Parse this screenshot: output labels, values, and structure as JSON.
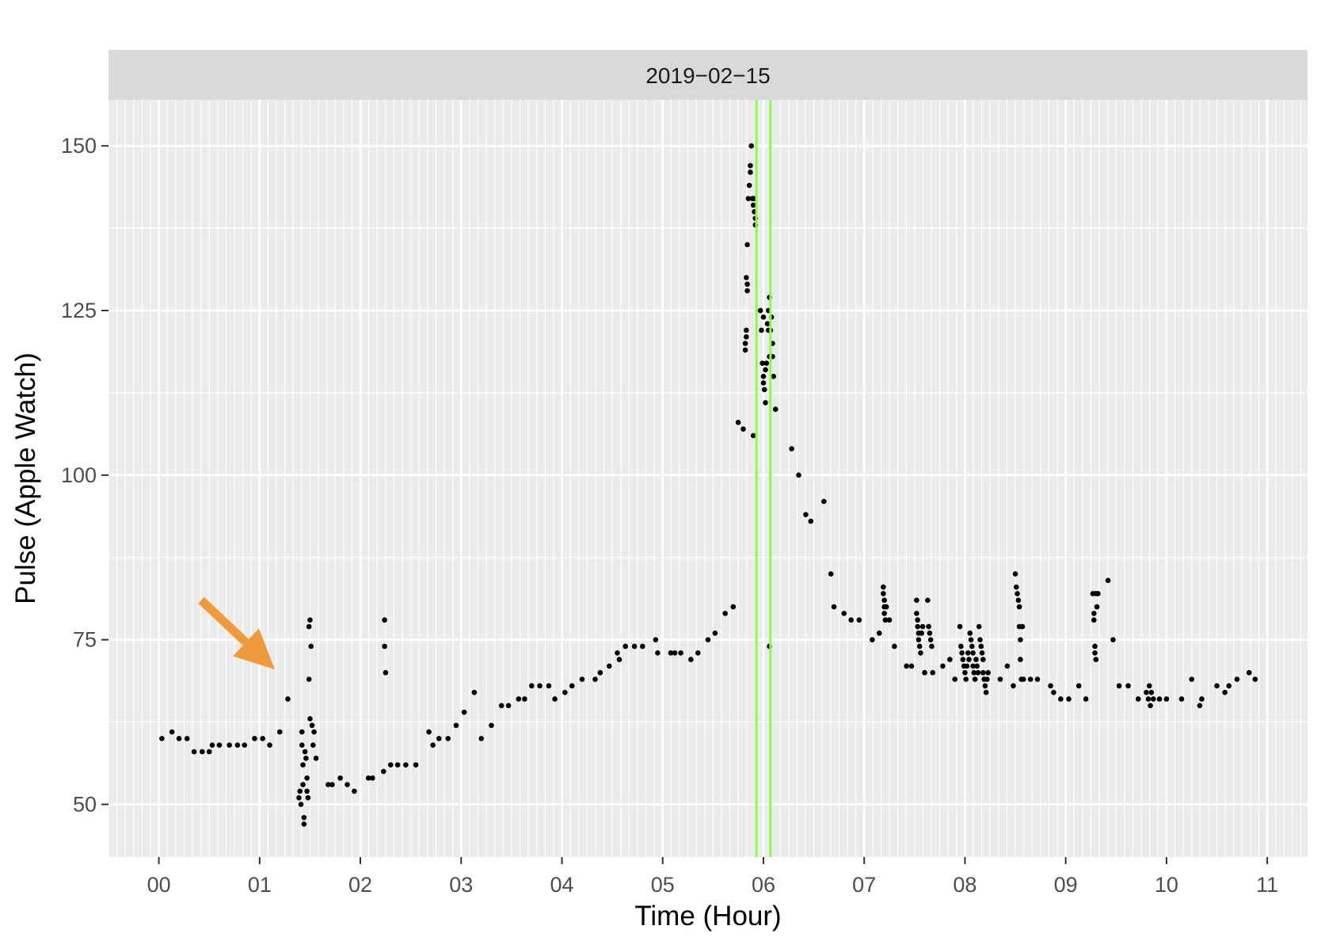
{
  "chart_data": {
    "type": "scatter",
    "facet_label": "2019−02−15",
    "xlabel": "Time (Hour)",
    "ylabel": "Pulse (Apple Watch)",
    "xlim": [
      -0.5,
      11.4
    ],
    "ylim": [
      42,
      157
    ],
    "x_ticks": [
      {
        "value": 0,
        "label": "00"
      },
      {
        "value": 1,
        "label": "01"
      },
      {
        "value": 2,
        "label": "02"
      },
      {
        "value": 3,
        "label": "03"
      },
      {
        "value": 4,
        "label": "04"
      },
      {
        "value": 5,
        "label": "05"
      },
      {
        "value": 6,
        "label": "06"
      },
      {
        "value": 7,
        "label": "07"
      },
      {
        "value": 8,
        "label": "08"
      },
      {
        "value": 9,
        "label": "09"
      },
      {
        "value": 10,
        "label": "10"
      },
      {
        "value": 11,
        "label": "11"
      }
    ],
    "y_ticks": [
      {
        "value": 50,
        "label": "50"
      },
      {
        "value": 75,
        "label": "75"
      },
      {
        "value": 100,
        "label": "100"
      },
      {
        "value": 125,
        "label": "125"
      },
      {
        "value": 150,
        "label": "150"
      }
    ],
    "grid": true,
    "minor_grid_x": "every 5 minutes",
    "background_color": "#ebebeb",
    "strip_color": "#d9d9d9",
    "point_color": "#000000",
    "vertical_lines": {
      "color": "#80ff40",
      "x": [
        5.93,
        6.07
      ]
    },
    "annotation_arrow": {
      "color": "#f09a3c",
      "from": [
        0.42,
        81
      ],
      "to": [
        1.15,
        70.5
      ]
    },
    "points": [
      [
        0.03,
        60
      ],
      [
        0.13,
        61
      ],
      [
        0.2,
        60
      ],
      [
        0.28,
        60
      ],
      [
        0.35,
        58
      ],
      [
        0.43,
        58
      ],
      [
        0.5,
        58
      ],
      [
        0.53,
        59
      ],
      [
        0.6,
        59
      ],
      [
        0.7,
        59
      ],
      [
        0.78,
        59
      ],
      [
        0.85,
        59
      ],
      [
        0.95,
        60
      ],
      [
        1.03,
        60
      ],
      [
        1.1,
        59
      ],
      [
        1.2,
        61
      ],
      [
        1.28,
        66
      ],
      [
        1.39,
        51
      ],
      [
        1.4,
        52
      ],
      [
        1.41,
        50
      ],
      [
        1.42,
        61
      ],
      [
        1.42,
        59
      ],
      [
        1.43,
        56
      ],
      [
        1.43,
        53
      ],
      [
        1.44,
        47
      ],
      [
        1.44,
        48
      ],
      [
        1.45,
        58
      ],
      [
        1.46,
        57
      ],
      [
        1.47,
        54
      ],
      [
        1.47,
        52
      ],
      [
        1.48,
        51
      ],
      [
        1.49,
        69
      ],
      [
        1.49,
        77
      ],
      [
        1.5,
        78
      ],
      [
        1.51,
        74
      ],
      [
        1.5,
        63
      ],
      [
        1.52,
        62
      ],
      [
        1.53,
        59
      ],
      [
        1.54,
        61
      ],
      [
        1.56,
        57
      ],
      [
        1.68,
        53
      ],
      [
        1.72,
        53
      ],
      [
        1.8,
        54
      ],
      [
        1.87,
        53
      ],
      [
        1.94,
        52
      ],
      [
        2.08,
        54
      ],
      [
        2.12,
        54
      ],
      [
        2.23,
        55
      ],
      [
        2.24,
        78
      ],
      [
        2.24,
        74
      ],
      [
        2.25,
        70
      ],
      [
        2.3,
        56
      ],
      [
        2.37,
        56
      ],
      [
        2.45,
        56
      ],
      [
        2.55,
        56
      ],
      [
        2.68,
        61
      ],
      [
        2.72,
        59
      ],
      [
        2.78,
        60
      ],
      [
        2.87,
        60
      ],
      [
        2.95,
        62
      ],
      [
        3.03,
        64
      ],
      [
        3.13,
        67
      ],
      [
        3.2,
        60
      ],
      [
        3.3,
        62
      ],
      [
        3.4,
        65
      ],
      [
        3.47,
        65
      ],
      [
        3.57,
        66
      ],
      [
        3.63,
        66
      ],
      [
        3.7,
        68
      ],
      [
        3.78,
        68
      ],
      [
        3.87,
        68
      ],
      [
        3.93,
        66
      ],
      [
        4.03,
        67
      ],
      [
        4.1,
        68
      ],
      [
        4.2,
        69
      ],
      [
        4.33,
        69
      ],
      [
        4.38,
        70
      ],
      [
        4.47,
        71
      ],
      [
        4.55,
        73
      ],
      [
        4.57,
        72
      ],
      [
        4.63,
        74
      ],
      [
        4.72,
        74
      ],
      [
        4.8,
        74
      ],
      [
        4.93,
        75
      ],
      [
        4.95,
        73
      ],
      [
        5.08,
        73
      ],
      [
        5.12,
        73
      ],
      [
        5.18,
        73
      ],
      [
        5.28,
        72
      ],
      [
        5.35,
        73
      ],
      [
        5.45,
        75
      ],
      [
        5.52,
        76
      ],
      [
        5.62,
        79
      ],
      [
        5.7,
        80
      ],
      [
        5.75,
        108
      ],
      [
        5.8,
        107
      ],
      [
        5.9,
        106
      ],
      [
        5.82,
        120
      ],
      [
        5.82,
        119
      ],
      [
        5.83,
        122
      ],
      [
        5.83,
        121
      ],
      [
        5.83,
        130
      ],
      [
        5.84,
        129
      ],
      [
        5.84,
        128
      ],
      [
        5.84,
        135
      ],
      [
        5.85,
        142
      ],
      [
        5.86,
        144
      ],
      [
        5.87,
        146
      ],
      [
        5.87,
        147
      ],
      [
        5.88,
        150
      ],
      [
        5.89,
        142
      ],
      [
        5.9,
        141
      ],
      [
        5.91,
        142
      ],
      [
        5.91,
        140
      ],
      [
        5.92,
        139
      ],
      [
        5.92,
        138
      ],
      [
        5.97,
        125
      ],
      [
        5.98,
        122
      ],
      [
        5.99,
        117
      ],
      [
        6.0,
        115
      ],
      [
        6.0,
        114
      ],
      [
        6.01,
        113
      ],
      [
        6.02,
        111
      ],
      [
        6.0,
        124
      ],
      [
        6.02,
        116
      ],
      [
        6.03,
        117
      ],
      [
        6.04,
        123
      ],
      [
        6.05,
        125
      ],
      [
        6.05,
        122
      ],
      [
        6.06,
        118
      ],
      [
        6.06,
        127
      ],
      [
        6.07,
        122
      ],
      [
        6.08,
        124
      ],
      [
        6.09,
        120
      ],
      [
        6.09,
        118
      ],
      [
        6.1,
        115
      ],
      [
        6.12,
        110
      ],
      [
        6.06,
        74
      ],
      [
        6.28,
        104
      ],
      [
        6.35,
        100
      ],
      [
        6.42,
        94
      ],
      [
        6.47,
        93
      ],
      [
        6.6,
        96
      ],
      [
        6.67,
        85
      ],
      [
        6.7,
        80
      ],
      [
        6.8,
        79
      ],
      [
        6.87,
        78
      ],
      [
        6.95,
        78
      ],
      [
        7.08,
        75
      ],
      [
        7.15,
        76
      ],
      [
        7.19,
        83
      ],
      [
        7.19,
        82
      ],
      [
        7.2,
        81
      ],
      [
        7.2,
        80
      ],
      [
        7.2,
        79
      ],
      [
        7.21,
        78
      ],
      [
        7.22,
        80
      ],
      [
        7.25,
        78
      ],
      [
        7.3,
        74
      ],
      [
        7.42,
        71
      ],
      [
        7.47,
        71
      ],
      [
        7.52,
        81
      ],
      [
        7.52,
        79
      ],
      [
        7.53,
        78
      ],
      [
        7.53,
        77
      ],
      [
        7.54,
        76
      ],
      [
        7.54,
        75
      ],
      [
        7.55,
        74
      ],
      [
        7.56,
        73
      ],
      [
        7.57,
        76
      ],
      [
        7.58,
        77
      ],
      [
        7.6,
        70
      ],
      [
        7.63,
        81
      ],
      [
        7.64,
        77
      ],
      [
        7.65,
        76
      ],
      [
        7.66,
        75
      ],
      [
        7.67,
        74
      ],
      [
        7.68,
        70
      ],
      [
        7.78,
        71
      ],
      [
        7.85,
        72
      ],
      [
        7.9,
        69
      ],
      [
        7.95,
        77
      ],
      [
        7.96,
        74
      ],
      [
        7.97,
        73
      ],
      [
        7.98,
        72
      ],
      [
        7.99,
        71
      ],
      [
        8.0,
        70
      ],
      [
        8.01,
        69
      ],
      [
        8.02,
        71
      ],
      [
        8.03,
        73
      ],
      [
        8.04,
        72
      ],
      [
        8.05,
        76
      ],
      [
        8.06,
        75
      ],
      [
        8.07,
        74
      ],
      [
        8.08,
        73
      ],
      [
        8.08,
        71
      ],
      [
        8.09,
        70
      ],
      [
        8.1,
        69
      ],
      [
        8.11,
        72
      ],
      [
        8.12,
        71
      ],
      [
        8.13,
        70
      ],
      [
        8.14,
        77
      ],
      [
        8.15,
        75
      ],
      [
        8.16,
        74
      ],
      [
        8.17,
        73
      ],
      [
        8.18,
        72
      ],
      [
        8.18,
        70
      ],
      [
        8.19,
        69
      ],
      [
        8.2,
        68
      ],
      [
        8.21,
        67
      ],
      [
        8.22,
        69
      ],
      [
        8.23,
        70
      ],
      [
        8.35,
        69
      ],
      [
        8.42,
        71
      ],
      [
        8.48,
        68
      ],
      [
        8.5,
        85
      ],
      [
        8.51,
        83
      ],
      [
        8.52,
        82
      ],
      [
        8.53,
        81
      ],
      [
        8.54,
        80
      ],
      [
        8.54,
        77
      ],
      [
        8.55,
        75
      ],
      [
        8.55,
        72
      ],
      [
        8.56,
        69
      ],
      [
        8.57,
        77
      ],
      [
        8.58,
        69
      ],
      [
        8.65,
        69
      ],
      [
        8.72,
        69
      ],
      [
        8.85,
        68
      ],
      [
        8.88,
        67
      ],
      [
        8.95,
        66
      ],
      [
        9.03,
        66
      ],
      [
        9.13,
        68
      ],
      [
        9.2,
        66
      ],
      [
        9.27,
        82
      ],
      [
        9.28,
        79
      ],
      [
        9.28,
        78
      ],
      [
        9.29,
        74
      ],
      [
        9.29,
        73
      ],
      [
        9.3,
        72
      ],
      [
        9.3,
        82
      ],
      [
        9.31,
        80
      ],
      [
        9.32,
        82
      ],
      [
        9.42,
        84
      ],
      [
        9.47,
        75
      ],
      [
        9.53,
        68
      ],
      [
        9.62,
        68
      ],
      [
        9.72,
        66
      ],
      [
        9.8,
        67
      ],
      [
        9.82,
        66
      ],
      [
        9.83,
        68
      ],
      [
        9.84,
        65
      ],
      [
        9.85,
        67
      ],
      [
        9.87,
        66
      ],
      [
        9.93,
        66
      ],
      [
        10.0,
        66
      ],
      [
        10.15,
        66
      ],
      [
        10.25,
        69
      ],
      [
        10.33,
        65
      ],
      [
        10.35,
        66
      ],
      [
        10.5,
        68
      ],
      [
        10.58,
        67
      ],
      [
        10.62,
        68
      ],
      [
        10.7,
        69
      ],
      [
        10.82,
        70
      ],
      [
        10.88,
        69
      ]
    ]
  }
}
